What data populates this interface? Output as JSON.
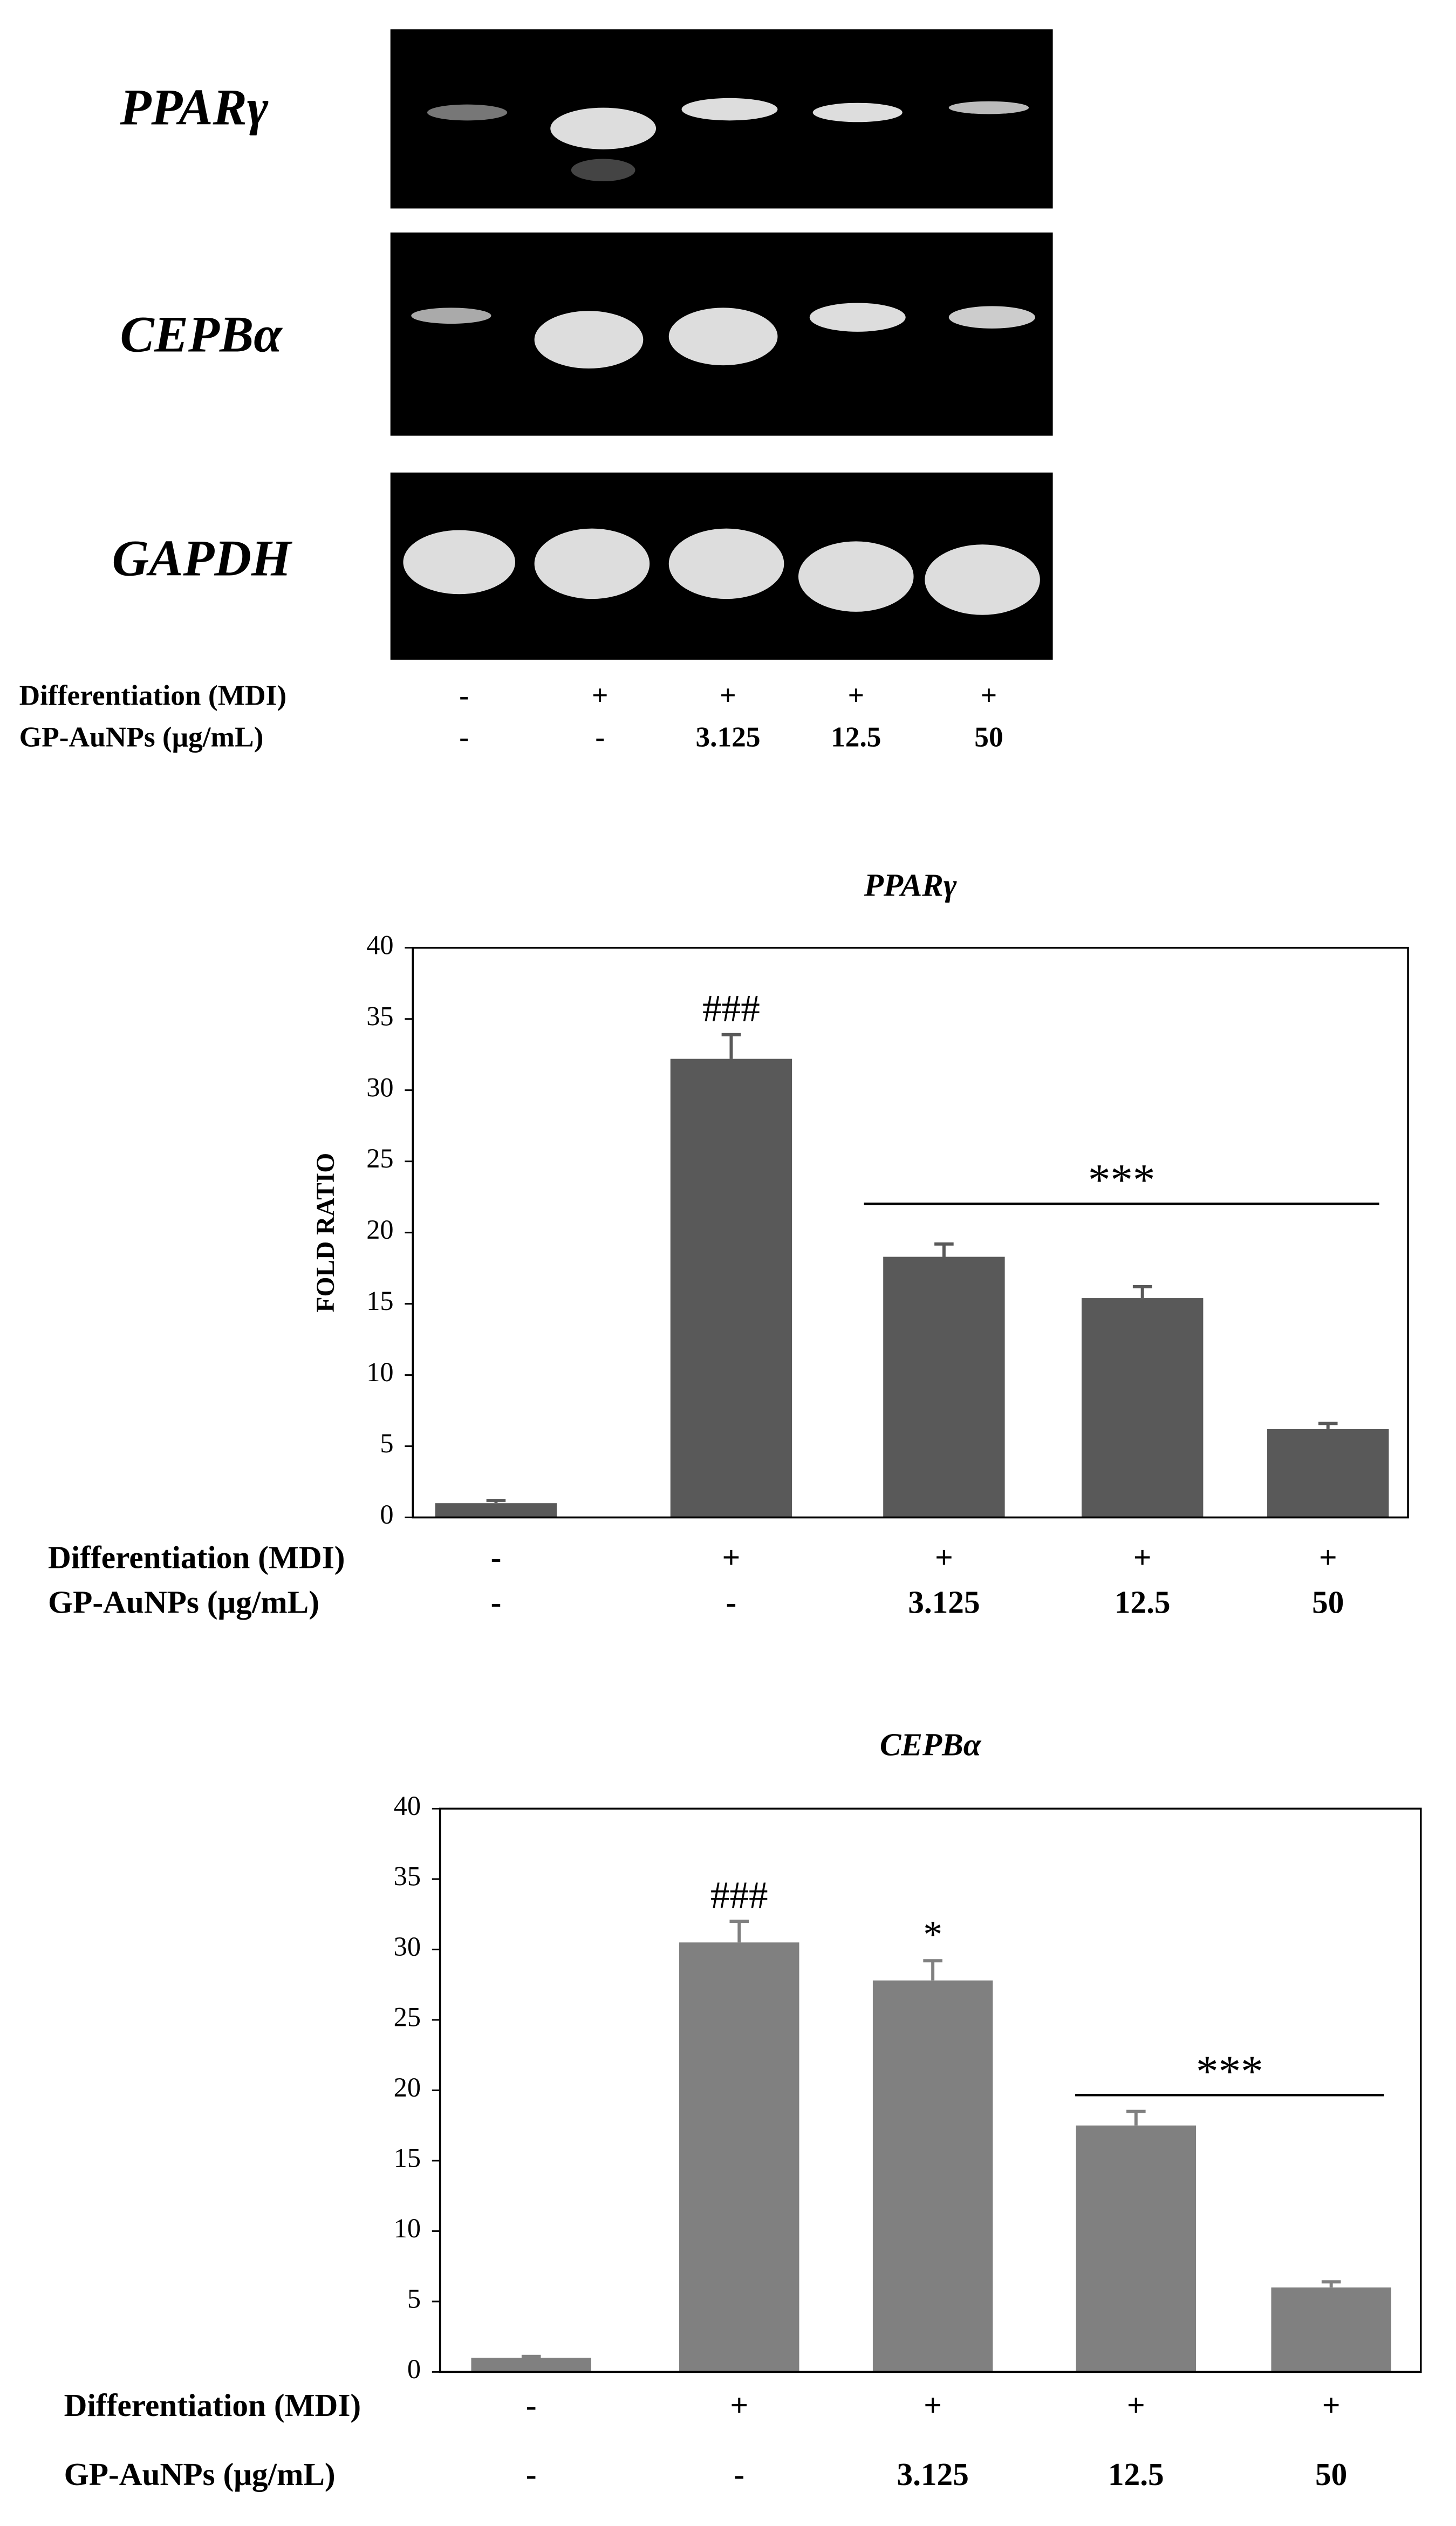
{
  "gel": {
    "bands": [
      "PPARγ",
      "CEPBα",
      "GAPDH"
    ],
    "condition_rows": [
      {
        "label": "Differentiation (MDI)",
        "values": [
          "-",
          "+",
          "+",
          "+",
          "+"
        ]
      },
      {
        "label": "GP-AuNPs (μg/mL)",
        "values": [
          "-",
          "-",
          "3.125",
          "12.5",
          "50"
        ]
      }
    ]
  },
  "chart_data": [
    {
      "type": "bar",
      "title": "PPARγ",
      "y_label": "FOLD RATIO",
      "color": "#595959",
      "category_rows": [
        {
          "label": "Differentiation (MDI)",
          "values": [
            "-",
            "+",
            "+",
            "+",
            "+"
          ]
        },
        {
          "label": "GP-AuNPs (μg/mL)",
          "values": [
            "-",
            "-",
            "3.125",
            "12.5",
            "50"
          ]
        }
      ],
      "values": [
        1,
        32.2,
        18.3,
        15.4,
        6.2
      ],
      "errors": [
        0.2,
        1.7,
        0.9,
        0.8,
        0.4
      ],
      "ylim": [
        0,
        40
      ],
      "yticks": [
        0,
        5,
        10,
        15,
        20,
        25,
        30,
        35,
        40
      ],
      "annotations": [
        "###",
        "***"
      ]
    },
    {
      "type": "bar",
      "title": "CEPBα",
      "color": "#808080",
      "category_rows": [
        {
          "label": "Differentiation (MDI)",
          "values": [
            "-",
            "+",
            "+",
            "+",
            "+"
          ]
        },
        {
          "label": "GP-AuNPs (μg/mL)",
          "values": [
            "-",
            "-",
            "3.125",
            "12.5",
            "50"
          ]
        }
      ],
      "values": [
        1,
        30.5,
        27.8,
        17.5,
        6
      ],
      "errors": [
        0.1,
        1.5,
        1.4,
        1.0,
        0.4
      ],
      "ylim": [
        0,
        40
      ],
      "yticks": [
        0,
        5,
        10,
        15,
        20,
        25,
        30,
        35,
        40
      ],
      "annotations": [
        "###",
        "*",
        "***"
      ]
    }
  ]
}
